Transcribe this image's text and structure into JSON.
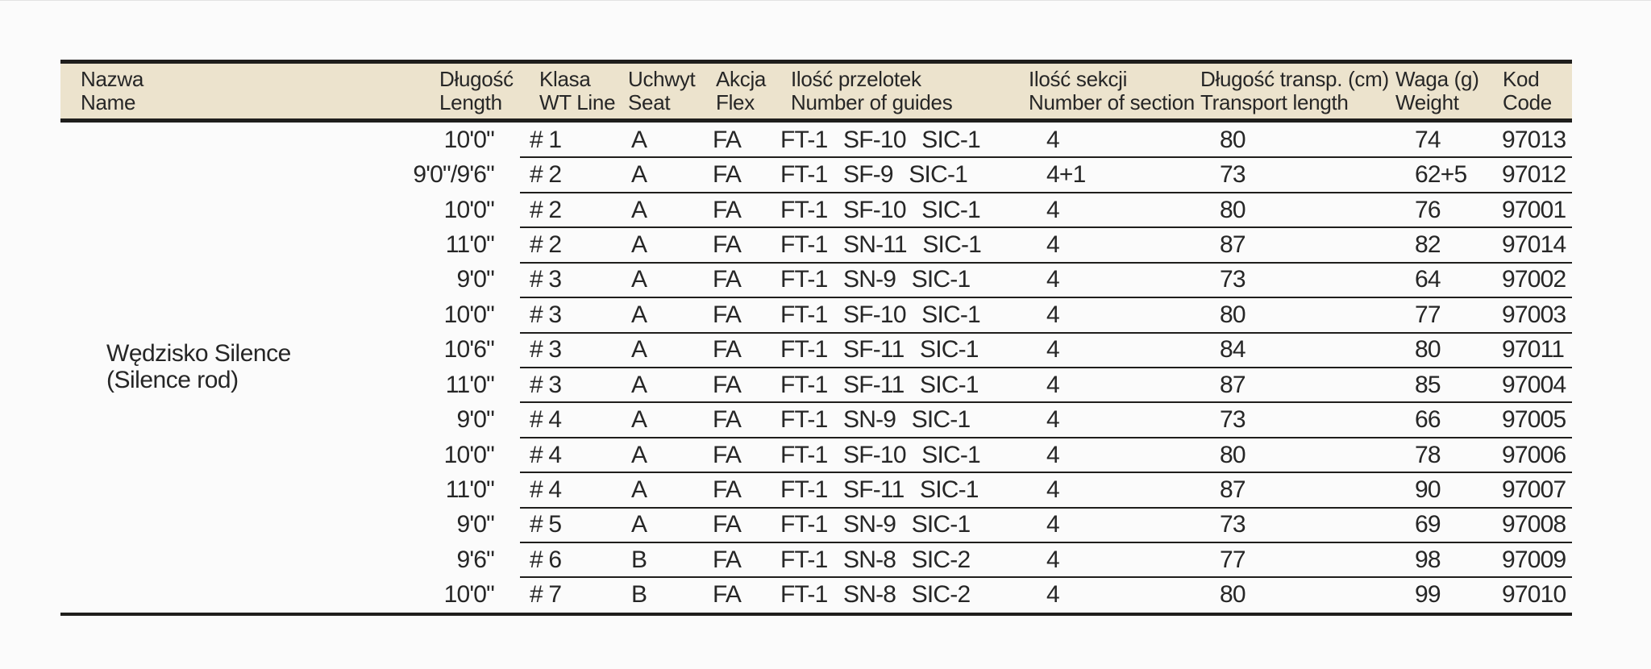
{
  "page": {
    "background": "#fbfbfb"
  },
  "table": {
    "header_bg_color": "#ece3cd",
    "rule_color": "#1f1e1c",
    "text_color": "#262626",
    "columns": {
      "name": {
        "pl": "Nazwa",
        "en": "Name"
      },
      "length": {
        "pl": "Długość",
        "en": "Length"
      },
      "klasa": {
        "pl": "Klasa",
        "en": "WT Line"
      },
      "uchwyt": {
        "pl": "Uchwyt",
        "en": "Seat"
      },
      "akcja": {
        "pl": "Akcja",
        "en": "Flex"
      },
      "guides": {
        "pl": "Ilość przelotek",
        "en": "Number of guides"
      },
      "sekcji": {
        "pl": "Ilość sekcji",
        "en": "Number of section"
      },
      "transport": {
        "pl": "Długość transp. (cm)",
        "en": "Transport length"
      },
      "waga": {
        "pl": "Waga (g)",
        "en": "Weight"
      },
      "kod": {
        "pl": "Kod",
        "en": "Code"
      }
    },
    "product": {
      "name_pl": "Wędzisko Silence",
      "name_en": "(Silence rod)"
    },
    "rows": [
      {
        "length": "10'0\"",
        "klasa": "# 1",
        "uchwyt": "A",
        "akcja": "FA",
        "guides": "FT-1 SF-10 SIC-1",
        "sekcji": "4",
        "transport": "80",
        "waga": "74",
        "kod": "97013"
      },
      {
        "length": "9'0\"/9'6\"",
        "klasa": "# 2",
        "uchwyt": "A",
        "akcja": "FA",
        "guides": "FT-1 SF-9 SIC-1",
        "sekcji": "4+1",
        "transport": "73",
        "waga": "62+5",
        "kod": "97012"
      },
      {
        "length": "10'0\"",
        "klasa": "# 2",
        "uchwyt": "A",
        "akcja": "FA",
        "guides": "FT-1 SF-10 SIC-1",
        "sekcji": "4",
        "transport": "80",
        "waga": "76",
        "kod": "97001"
      },
      {
        "length": "11'0\"",
        "klasa": "# 2",
        "uchwyt": "A",
        "akcja": "FA",
        "guides": "FT-1 SN-11 SIC-1",
        "sekcji": "4",
        "transport": "87",
        "waga": "82",
        "kod": "97014"
      },
      {
        "length": "9'0\"",
        "klasa": "# 3",
        "uchwyt": "A",
        "akcja": "FA",
        "guides": "FT-1 SN-9 SIC-1",
        "sekcji": "4",
        "transport": "73",
        "waga": "64",
        "kod": "97002"
      },
      {
        "length": "10'0\"",
        "klasa": "# 3",
        "uchwyt": "A",
        "akcja": "FA",
        "guides": "FT-1 SF-10 SIC-1",
        "sekcji": "4",
        "transport": "80",
        "waga": "77",
        "kod": "97003"
      },
      {
        "length": "10'6\"",
        "klasa": "# 3",
        "uchwyt": "A",
        "akcja": "FA",
        "guides": "FT-1 SF-11 SIC-1",
        "sekcji": "4",
        "transport": "84",
        "waga": "80",
        "kod": "97011"
      },
      {
        "length": "11'0\"",
        "klasa": "# 3",
        "uchwyt": "A",
        "akcja": "FA",
        "guides": "FT-1 SF-11 SIC-1",
        "sekcji": "4",
        "transport": "87",
        "waga": "85",
        "kod": "97004"
      },
      {
        "length": "9'0\"",
        "klasa": "# 4",
        "uchwyt": "A",
        "akcja": "FA",
        "guides": "FT-1 SN-9 SIC-1",
        "sekcji": "4",
        "transport": "73",
        "waga": "66",
        "kod": "97005"
      },
      {
        "length": "10'0\"",
        "klasa": "# 4",
        "uchwyt": "A",
        "akcja": "FA",
        "guides": "FT-1 SF-10 SIC-1",
        "sekcji": "4",
        "transport": "80",
        "waga": "78",
        "kod": "97006"
      },
      {
        "length": "11'0\"",
        "klasa": "# 4",
        "uchwyt": "A",
        "akcja": "FA",
        "guides": "FT-1 SF-11 SIC-1",
        "sekcji": "4",
        "transport": "87",
        "waga": "90",
        "kod": "97007"
      },
      {
        "length": "9'0\"",
        "klasa": "# 5",
        "uchwyt": "A",
        "akcja": "FA",
        "guides": "FT-1 SN-9 SIC-1",
        "sekcji": "4",
        "transport": "73",
        "waga": "69",
        "kod": "97008"
      },
      {
        "length": "9'6\"",
        "klasa": "# 6",
        "uchwyt": "B",
        "akcja": "FA",
        "guides": "FT-1 SN-8 SIC-2",
        "sekcji": "4",
        "transport": "77",
        "waga": "98",
        "kod": "97009"
      },
      {
        "length": "10'0\"",
        "klasa": "# 7",
        "uchwyt": "B",
        "akcja": "FA",
        "guides": "FT-1 SN-8 SIC-2",
        "sekcji": "4",
        "transport": "80",
        "waga": "99",
        "kod": "97010"
      }
    ]
  }
}
